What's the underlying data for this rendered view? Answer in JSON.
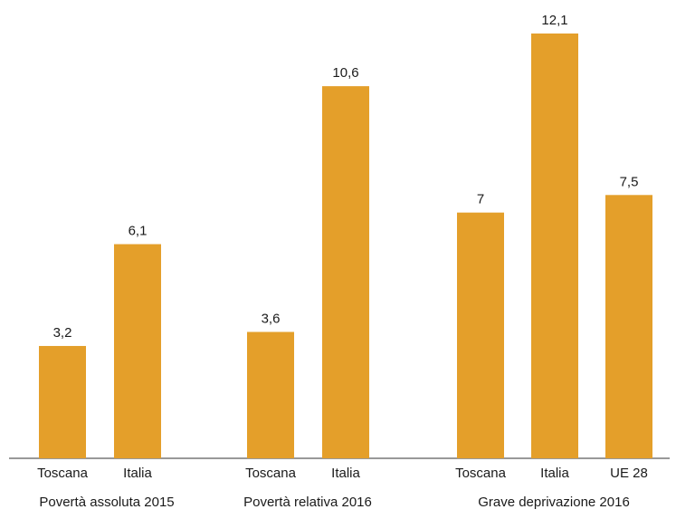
{
  "chart_data": {
    "type": "bar",
    "title": "",
    "xlabel": "",
    "ylabel": "",
    "ylim": [
      0,
      12.1
    ],
    "grid": false,
    "legend": "none",
    "bar_color": "#E49F2A",
    "groups": [
      {
        "label": "Povertà assoluta 2015",
        "categories": [
          "Toscana",
          "Italia"
        ],
        "values": [
          3.2,
          6.1
        ],
        "value_labels": [
          "3,2",
          "6,1"
        ]
      },
      {
        "label": "Povertà relativa 2016",
        "categories": [
          "Toscana",
          "Italia"
        ],
        "values": [
          3.6,
          10.6
        ],
        "value_labels": [
          "3,6",
          "10,6"
        ]
      },
      {
        "label": "Grave deprivazione 2016",
        "categories": [
          "Toscana",
          "Italia",
          "UE 28"
        ],
        "values": [
          7,
          12.1,
          7.5
        ],
        "value_labels": [
          "7",
          "12,1",
          "7,5"
        ]
      }
    ]
  }
}
